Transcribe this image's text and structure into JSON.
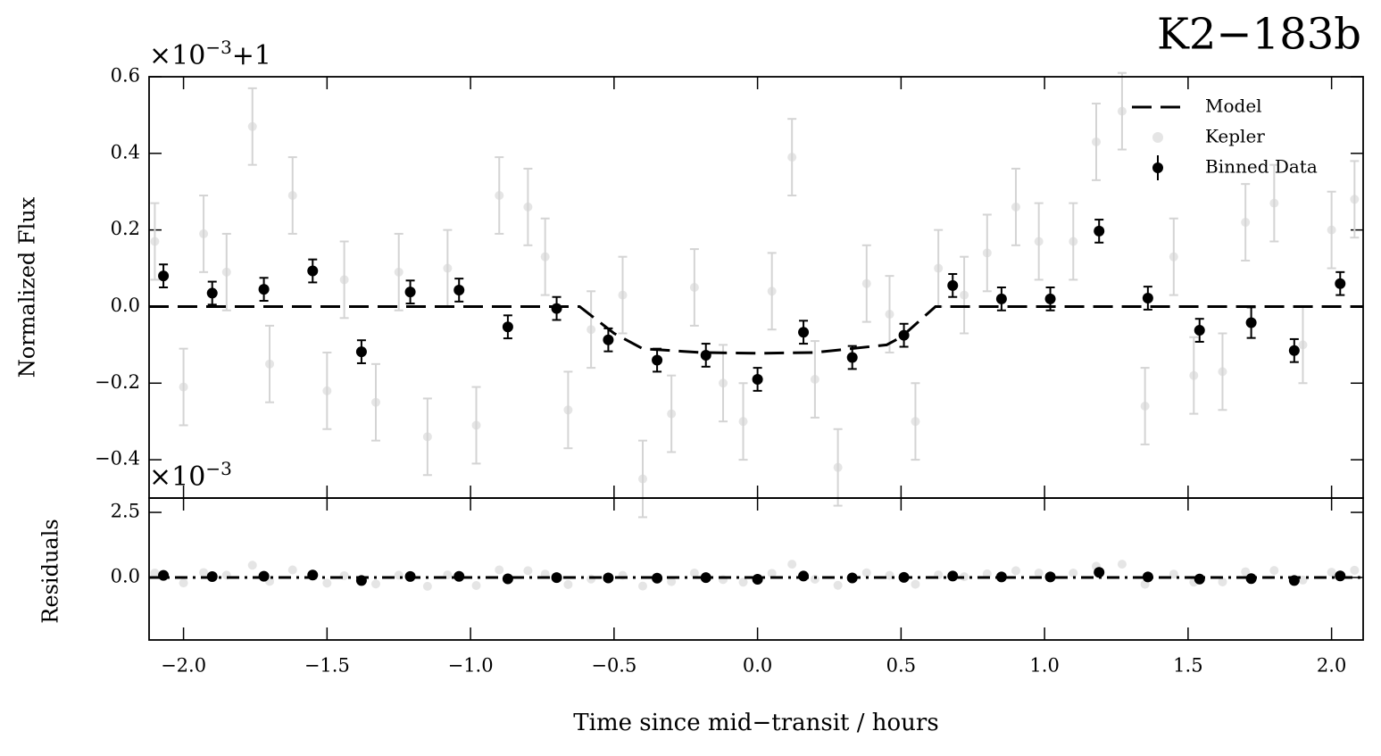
{
  "chart_data": [
    {
      "type": "errorbar",
      "title": "K2−183b",
      "ylabel": "Normalized Flux",
      "offset_text": {
        "base": "×10",
        "exponent": "−3",
        "suffix": "+1"
      },
      "xlim": [
        -2.12,
        2.11
      ],
      "ylim": [
        -0.5,
        0.6
      ],
      "yticks": [
        {
          "value": -0.4,
          "label": "−0.4"
        },
        {
          "value": -0.2,
          "label": "−0.2"
        },
        {
          "value": 0,
          "label": "0.0"
        },
        {
          "value": 0.2,
          "label": "0.2"
        },
        {
          "value": 0.4,
          "label": "0.4"
        },
        {
          "value": 0.6,
          "label": "0.6"
        }
      ],
      "legend": "upper right",
      "series": [
        {
          "name": "Model",
          "kind": "line",
          "style": "dashed",
          "color": "#000000",
          "x": [
            -2.12,
            -0.62,
            -0.5,
            -0.4,
            -0.2,
            0,
            0.2,
            0.45,
            0.5,
            0.62,
            2.11
          ],
          "values": [
            0,
            0,
            -0.07,
            -0.11,
            -0.12,
            -0.122,
            -0.12,
            -0.1,
            -0.08,
            0,
            0
          ]
        },
        {
          "name": "Kepler",
          "kind": "errorbar",
          "color": "#d4d4d4",
          "error": 0.1,
          "x": [
            -2.1,
            -2.0,
            -1.93,
            -1.85,
            -1.76,
            -1.7,
            -1.62,
            -1.5,
            -1.44,
            -1.33,
            -1.25,
            -1.15,
            -1.08,
            -0.98,
            -0.9,
            -0.8,
            -0.74,
            -0.66,
            -0.58,
            -0.47,
            -0.4,
            -0.3,
            -0.22,
            -0.12,
            -0.05,
            0.05,
            0.12,
            0.2,
            0.28,
            0.38,
            0.46,
            0.55,
            0.63,
            0.72,
            0.8,
            0.9,
            0.98,
            1.1,
            1.18,
            1.27,
            1.35,
            1.45,
            1.52,
            1.62,
            1.7,
            1.8,
            1.9,
            2.0,
            2.08
          ],
          "values": [
            0.17,
            -0.21,
            0.19,
            0.09,
            0.47,
            -0.15,
            0.29,
            -0.22,
            0.07,
            -0.25,
            0.09,
            -0.34,
            0.1,
            -0.31,
            0.29,
            0.26,
            0.13,
            -0.27,
            -0.06,
            0.03,
            -0.45,
            -0.28,
            0.05,
            -0.2,
            -0.3,
            0.04,
            0.39,
            -0.19,
            -0.42,
            0.06,
            -0.02,
            -0.3,
            0.1,
            0.03,
            0.14,
            0.26,
            0.17,
            0.17,
            0.43,
            0.51,
            -0.26,
            0.13,
            -0.18,
            -0.17,
            0.22,
            0.27,
            -0.1,
            0.2,
            0.28
          ]
        },
        {
          "name": "Binned Data",
          "kind": "errorbar",
          "color": "#000000",
          "x": [
            -2.07,
            -1.9,
            -1.72,
            -1.55,
            -1.38,
            -1.21,
            -1.04,
            -0.87,
            -0.7,
            -0.52,
            -0.35,
            -0.18,
            0,
            0.16,
            0.33,
            0.51,
            0.68,
            0.85,
            1.02,
            1.19,
            1.36,
            1.54,
            1.72,
            1.87,
            2.03
          ],
          "values": [
            0.08,
            0.035,
            0.045,
            0.093,
            -0.118,
            0.038,
            0.043,
            -0.053,
            -0.005,
            -0.087,
            -0.14,
            -0.127,
            -0.19,
            -0.067,
            -0.133,
            -0.075,
            0.055,
            0.02,
            0.02,
            0.197,
            0.022,
            -0.062,
            -0.042,
            -0.115,
            0.06
          ],
          "errors": [
            0.03,
            0.03,
            0.03,
            0.03,
            0.03,
            0.03,
            0.03,
            0.03,
            0.03,
            0.03,
            0.03,
            0.03,
            0.03,
            0.03,
            0.03,
            0.03,
            0.03,
            0.03,
            0.03,
            0.03,
            0.03,
            0.03,
            0.04,
            0.03,
            0.03
          ]
        }
      ]
    },
    {
      "type": "errorbar",
      "ylabel": "Residuals",
      "xlabel": "Time since mid−transit / hours",
      "offset_text": {
        "base": "×10",
        "exponent": "−3"
      },
      "xlim": [
        -2.12,
        2.11
      ],
      "ylim": [
        -2.4,
        3.05
      ],
      "xticks": [
        {
          "value": -2,
          "label": "−2.0"
        },
        {
          "value": -1.5,
          "label": "−1.5"
        },
        {
          "value": -1,
          "label": "−1.0"
        },
        {
          "value": -0.5,
          "label": "−0.5"
        },
        {
          "value": 0,
          "label": "0.0"
        },
        {
          "value": 0.5,
          "label": "0.5"
        },
        {
          "value": 1,
          "label": "1.0"
        },
        {
          "value": 1.5,
          "label": "1.5"
        },
        {
          "value": 2,
          "label": "2.0"
        }
      ],
      "yticks": [
        {
          "value": 0,
          "label": "0.0"
        },
        {
          "value": 2.5,
          "label": "2.5"
        }
      ],
      "series": [
        {
          "kind": "line",
          "style": "dashdot",
          "color": "#000000",
          "x": [
            -2.12,
            2.11
          ],
          "values": [
            0,
            0
          ]
        },
        {
          "kind": "scatter",
          "color": "#d4d4d4",
          "x": [
            -2.1,
            -2.0,
            -1.93,
            -1.85,
            -1.76,
            -1.7,
            -1.62,
            -1.5,
            -1.44,
            -1.33,
            -1.25,
            -1.15,
            -1.08,
            -0.98,
            -0.9,
            -0.8,
            -0.74,
            -0.66,
            -0.58,
            -0.47,
            -0.4,
            -0.3,
            -0.22,
            -0.12,
            -0.05,
            0.05,
            0.12,
            0.2,
            0.28,
            0.38,
            0.46,
            0.55,
            0.63,
            0.72,
            0.8,
            0.9,
            0.98,
            1.1,
            1.18,
            1.27,
            1.35,
            1.45,
            1.52,
            1.62,
            1.7,
            1.8,
            1.9,
            2.0,
            2.08
          ],
          "values": [
            0.17,
            -0.21,
            0.19,
            0.09,
            0.47,
            -0.15,
            0.29,
            -0.22,
            0.07,
            -0.25,
            0.09,
            -0.34,
            0.1,
            -0.31,
            0.29,
            0.26,
            0.13,
            -0.27,
            -0.06,
            0.08,
            -0.33,
            -0.16,
            0.17,
            -0.08,
            -0.18,
            0.16,
            0.51,
            -0.07,
            -0.3,
            0.18,
            0.08,
            -0.26,
            0.1,
            0.03,
            0.14,
            0.26,
            0.17,
            0.17,
            0.43,
            0.51,
            -0.26,
            0.13,
            -0.18,
            -0.17,
            0.22,
            0.27,
            -0.1,
            0.2,
            0.28
          ]
        },
        {
          "kind": "scatter",
          "color": "#000000",
          "x": [
            -2.07,
            -1.9,
            -1.72,
            -1.55,
            -1.38,
            -1.21,
            -1.04,
            -0.87,
            -0.7,
            -0.52,
            -0.35,
            -0.18,
            0,
            0.16,
            0.33,
            0.51,
            0.68,
            0.85,
            1.02,
            1.19,
            1.36,
            1.54,
            1.72,
            1.87,
            2.03
          ],
          "values": [
            0.08,
            0.035,
            0.045,
            0.093,
            -0.118,
            0.038,
            0.043,
            -0.053,
            -0.005,
            -0.017,
            -0.025,
            -0.007,
            -0.068,
            0.053,
            -0.018,
            0.005,
            0.055,
            0.02,
            0.02,
            0.197,
            0.022,
            -0.062,
            -0.042,
            -0.115,
            0.06
          ]
        }
      ]
    }
  ]
}
